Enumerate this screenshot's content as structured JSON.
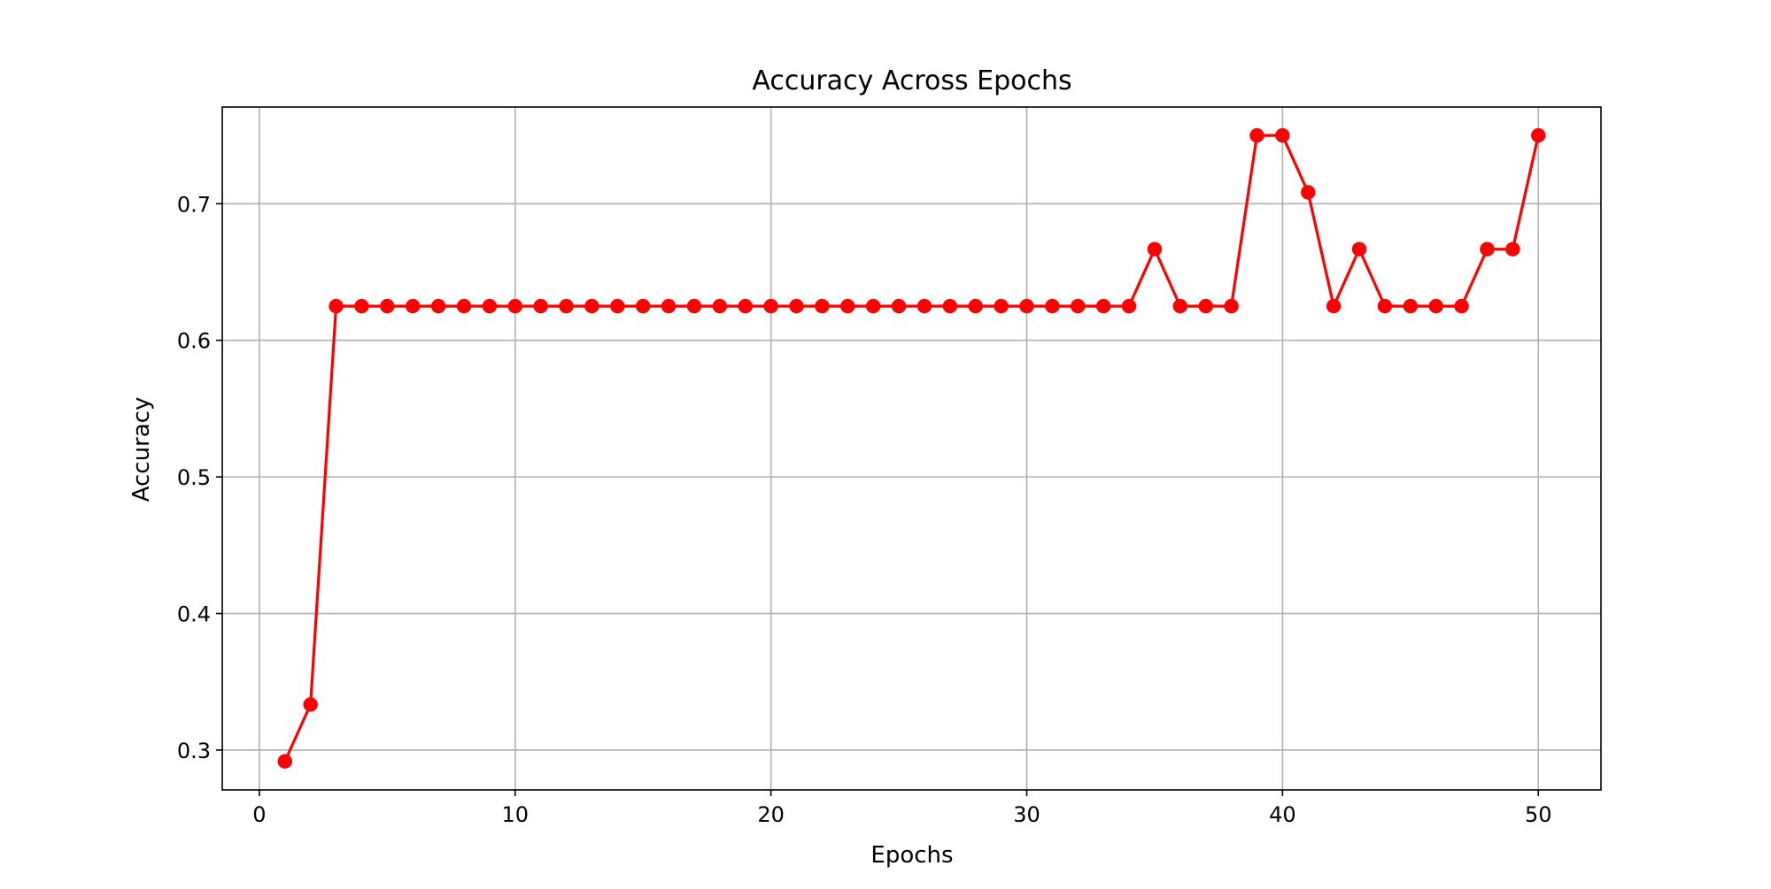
{
  "chart_data": {
    "type": "line",
    "title": "Accuracy Across Epochs",
    "xlabel": "Epochs",
    "ylabel": "Accuracy",
    "xlim": [
      -1.45,
      52.45
    ],
    "ylim": [
      0.2708,
      0.7708
    ],
    "xticks": [
      0,
      10,
      20,
      30,
      40,
      50
    ],
    "yticks": [
      0.3,
      0.4,
      0.5,
      0.6,
      0.7
    ],
    "xtick_labels": [
      "0",
      "10",
      "20",
      "30",
      "40",
      "50"
    ],
    "ytick_labels": [
      "0.3",
      "0.4",
      "0.5",
      "0.6",
      "0.7"
    ],
    "grid": true,
    "legend": false,
    "line_color": "#ff0000",
    "marker": "circle",
    "x": [
      1,
      2,
      3,
      4,
      5,
      6,
      7,
      8,
      9,
      10,
      11,
      12,
      13,
      14,
      15,
      16,
      17,
      18,
      19,
      20,
      21,
      22,
      23,
      24,
      25,
      26,
      27,
      28,
      29,
      30,
      31,
      32,
      33,
      34,
      35,
      36,
      37,
      38,
      39,
      40,
      41,
      42,
      43,
      44,
      45,
      46,
      47,
      48,
      49,
      50
    ],
    "series": [
      {
        "values": [
          0.2917,
          0.3333,
          0.625,
          0.625,
          0.625,
          0.625,
          0.625,
          0.625,
          0.625,
          0.625,
          0.625,
          0.625,
          0.625,
          0.625,
          0.625,
          0.625,
          0.625,
          0.625,
          0.625,
          0.625,
          0.625,
          0.625,
          0.625,
          0.625,
          0.625,
          0.625,
          0.625,
          0.625,
          0.625,
          0.625,
          0.625,
          0.625,
          0.625,
          0.625,
          0.6667,
          0.625,
          0.625,
          0.625,
          0.75,
          0.75,
          0.7083,
          0.625,
          0.6667,
          0.625,
          0.625,
          0.625,
          0.625,
          0.6667,
          0.6667,
          0.75
        ]
      }
    ]
  }
}
